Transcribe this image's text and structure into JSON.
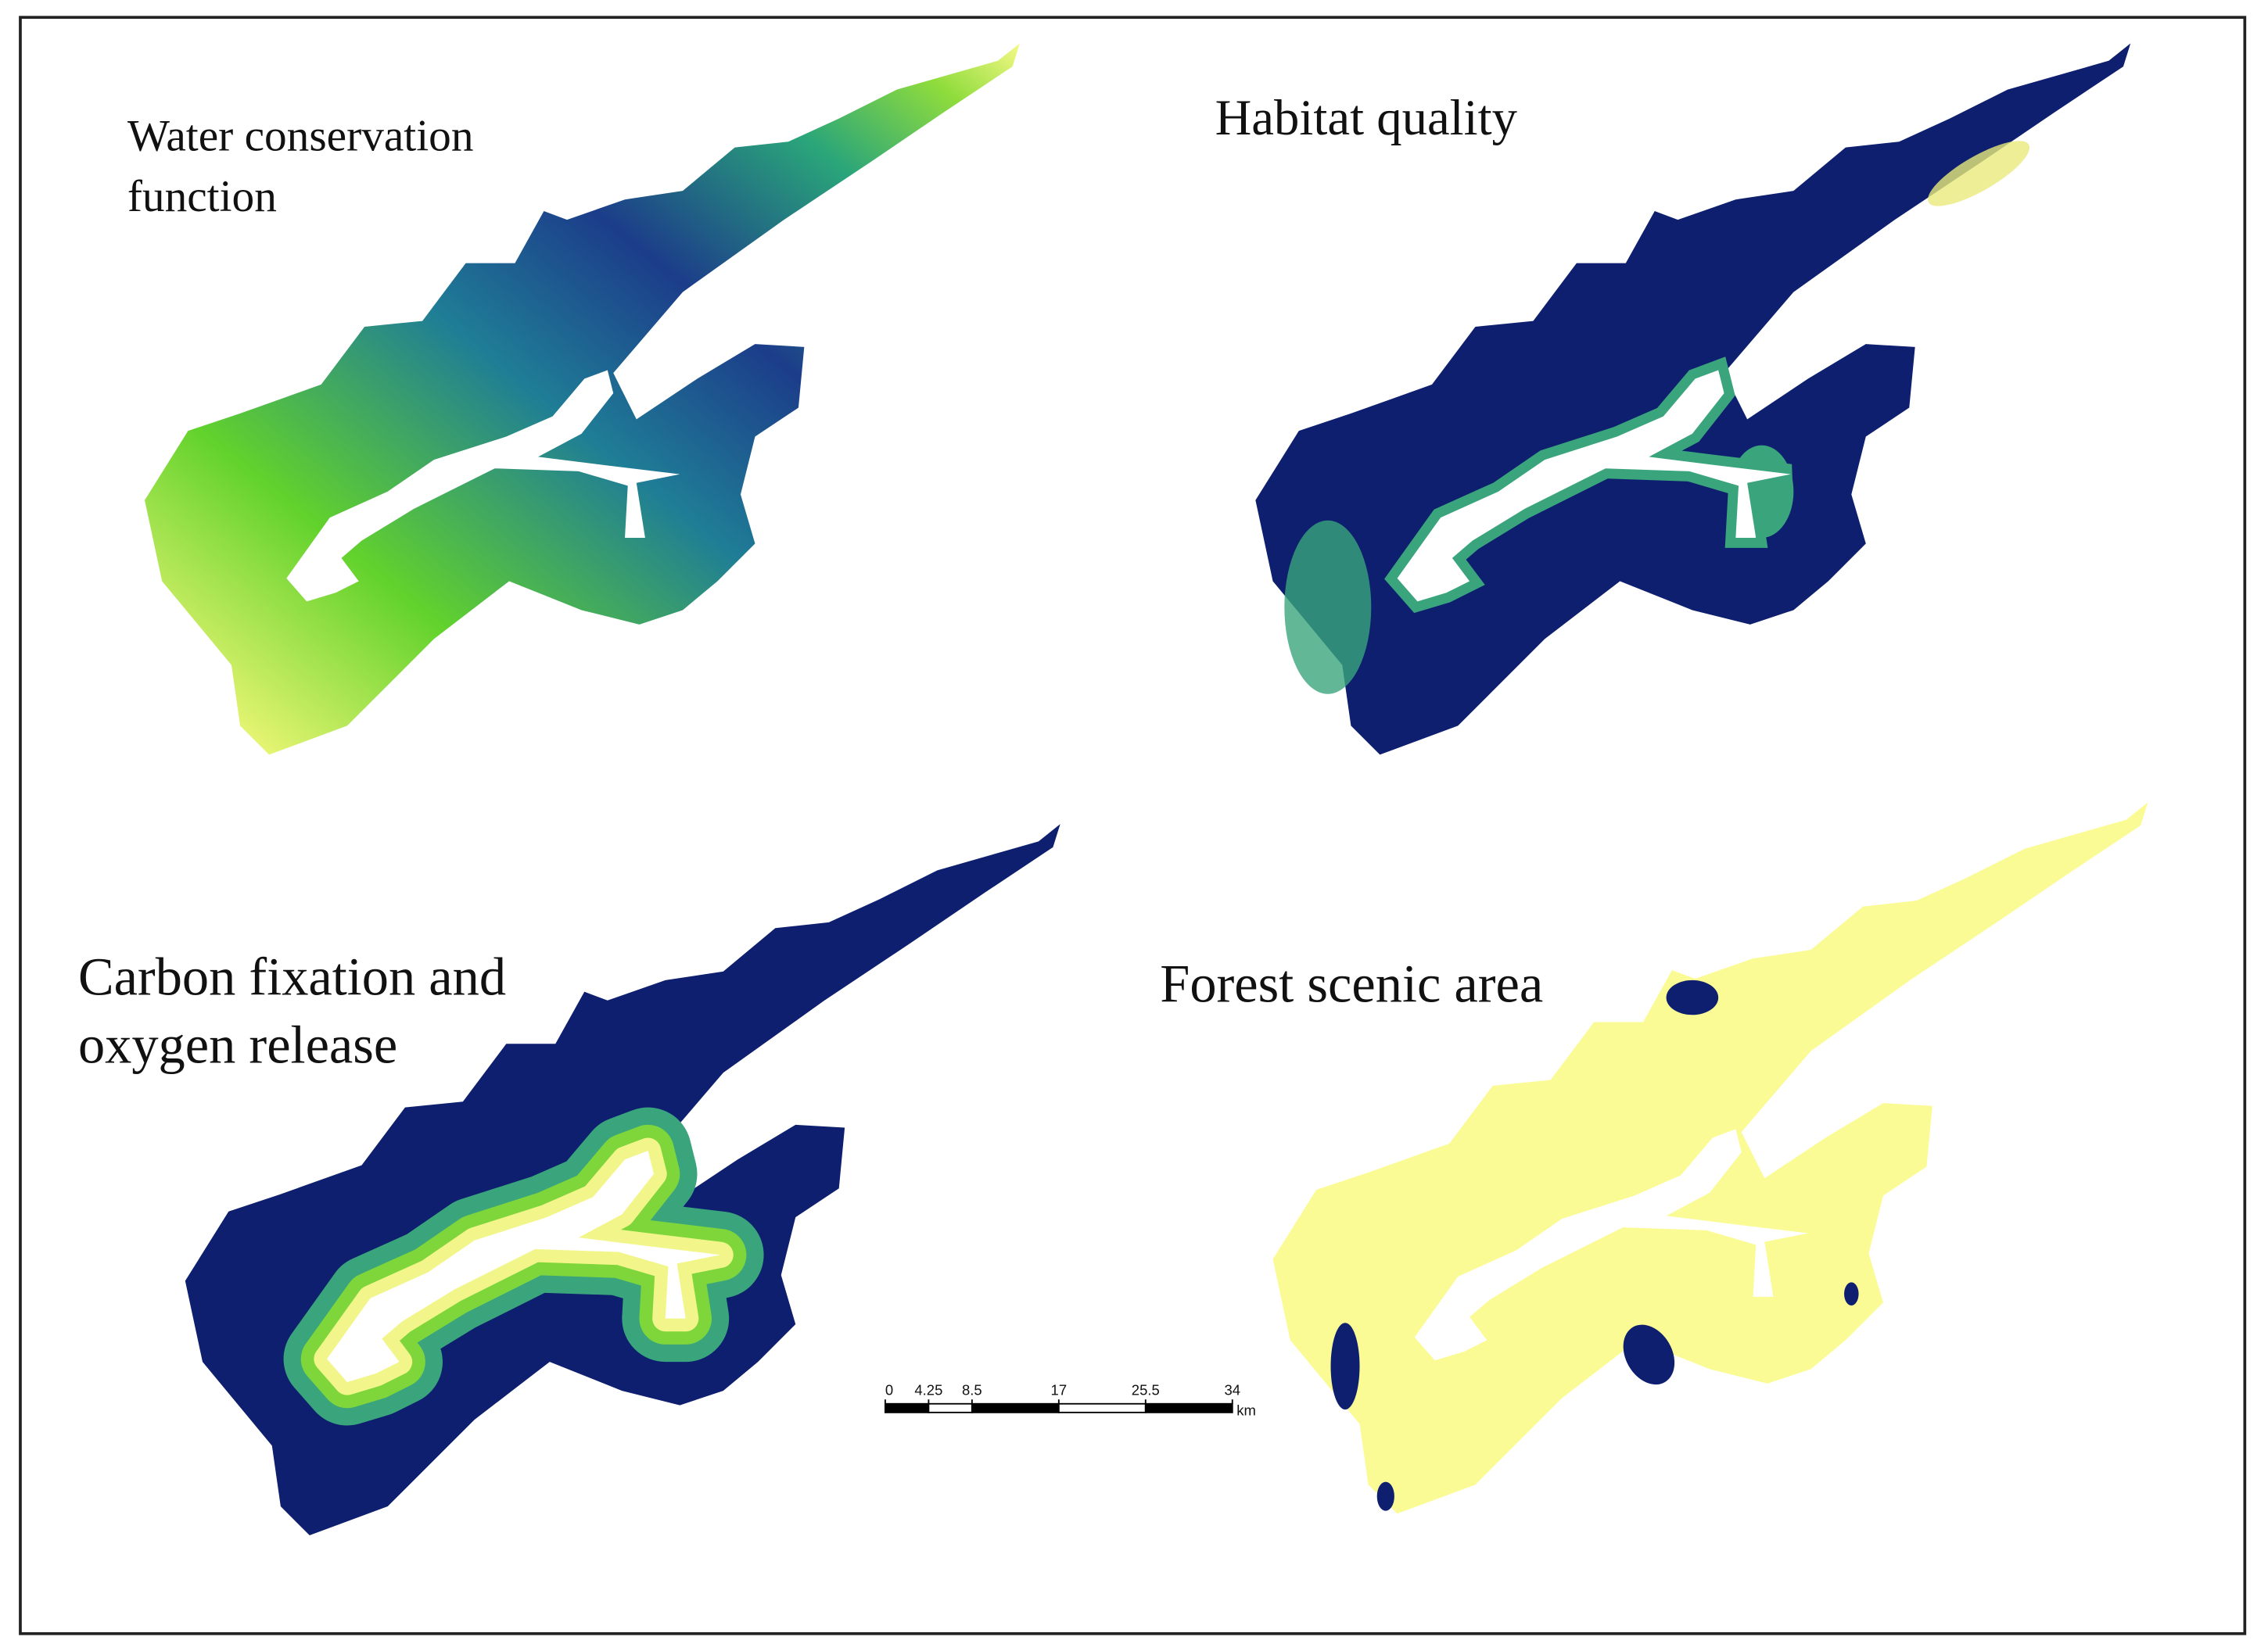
{
  "panels": [
    {
      "title": [
        "Water conservation",
        "function"
      ]
    },
    {
      "title": [
        "Habitat quality"
      ]
    },
    {
      "title": [
        "Carbon fixation and",
        "oxygen release"
      ]
    },
    {
      "title": [
        "Forest scenic area"
      ]
    }
  ],
  "scale_bar": {
    "ticks": [
      0,
      4.25,
      8.5,
      17,
      25.5,
      34
    ],
    "unit": "km"
  }
}
